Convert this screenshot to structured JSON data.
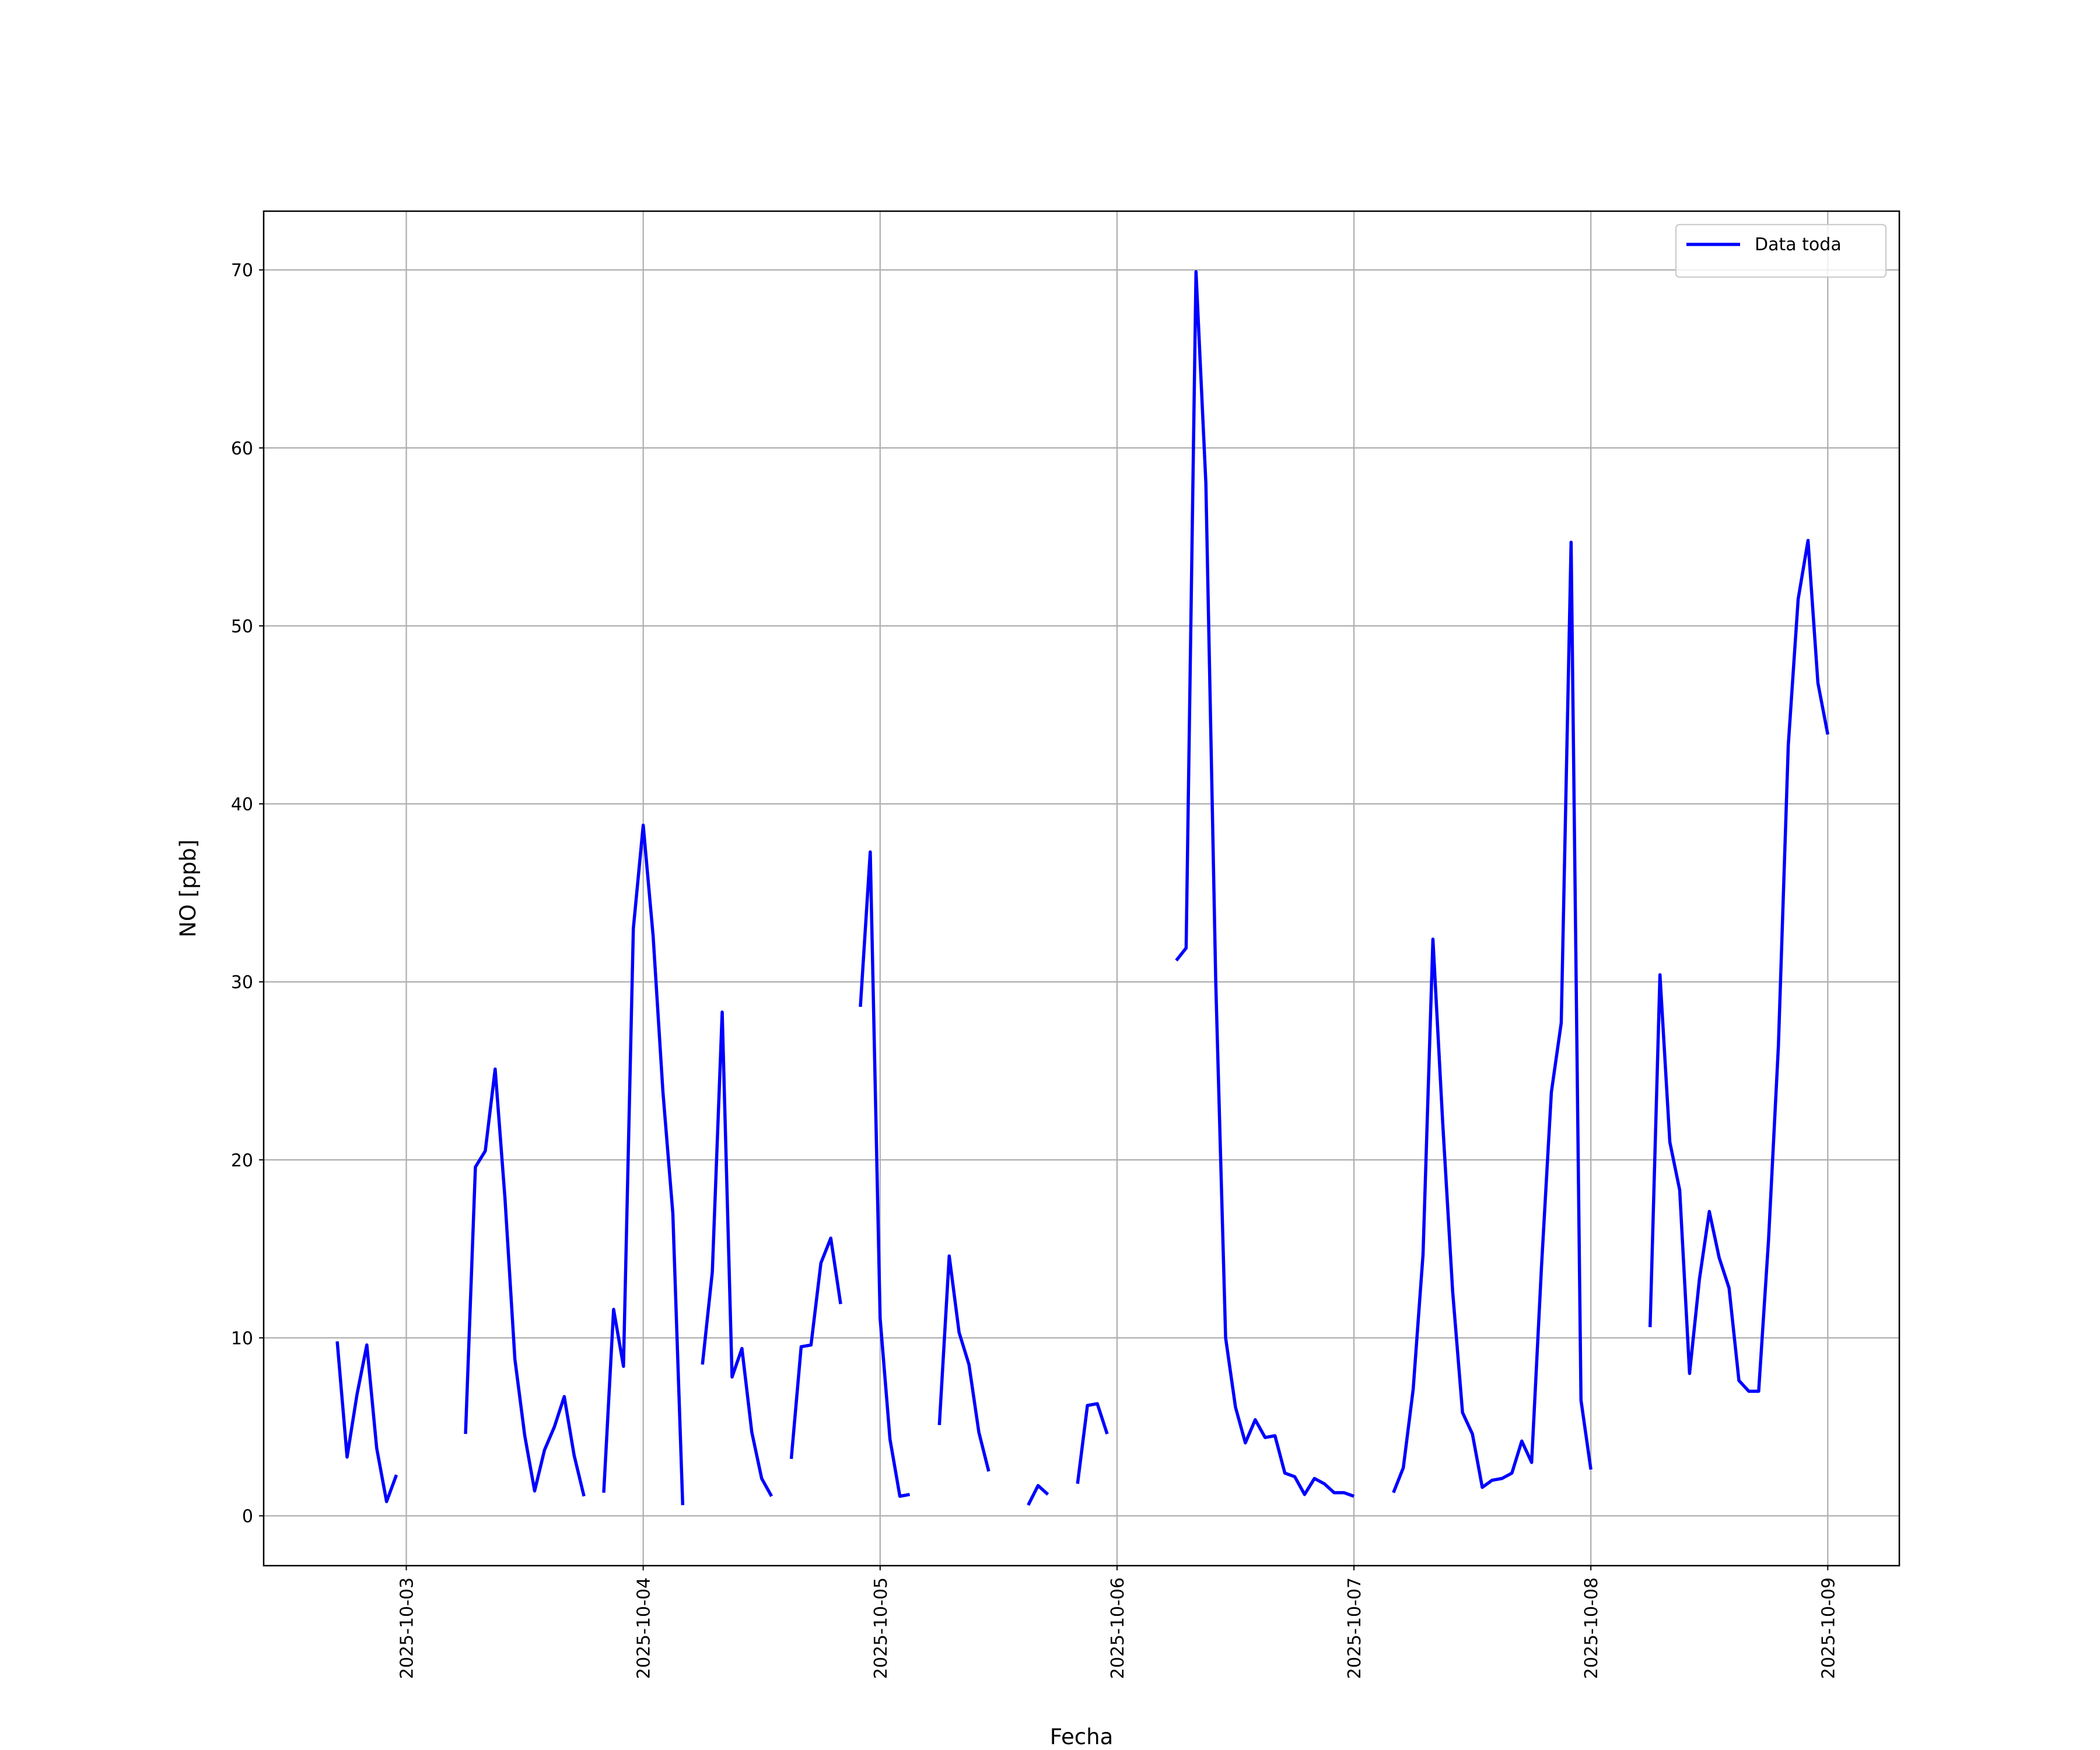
{
  "chart_data": {
    "type": "line",
    "xlabel": "Fecha",
    "ylabel": "NO [ppb]",
    "x": [
      "2025-10-02 17:00",
      "2025-10-02 18:00",
      "2025-10-02 19:00",
      "2025-10-02 20:00",
      "2025-10-02 21:00",
      "2025-10-02 22:00",
      "2025-10-02 23:00",
      "2025-10-03 00:00",
      "2025-10-03 01:00",
      "2025-10-03 02:00",
      "2025-10-03 03:00",
      "2025-10-03 04:00",
      "2025-10-03 05:00",
      "2025-10-03 06:00",
      "2025-10-03 07:00",
      "2025-10-03 08:00",
      "2025-10-03 09:00",
      "2025-10-03 10:00",
      "2025-10-03 11:00",
      "2025-10-03 12:00",
      "2025-10-03 13:00",
      "2025-10-03 14:00",
      "2025-10-03 15:00",
      "2025-10-03 16:00",
      "2025-10-03 17:00",
      "2025-10-03 18:00",
      "2025-10-03 19:00",
      "2025-10-03 20:00",
      "2025-10-03 21:00",
      "2025-10-03 22:00",
      "2025-10-03 23:00",
      "2025-10-04 00:00",
      "2025-10-04 01:00",
      "2025-10-04 02:00",
      "2025-10-04 03:00",
      "2025-10-04 04:00",
      "2025-10-04 05:00",
      "2025-10-04 06:00",
      "2025-10-04 07:00",
      "2025-10-04 08:00",
      "2025-10-04 09:00",
      "2025-10-04 10:00",
      "2025-10-04 11:00",
      "2025-10-04 12:00",
      "2025-10-04 13:00",
      "2025-10-04 14:00",
      "2025-10-04 15:00",
      "2025-10-04 16:00",
      "2025-10-04 17:00",
      "2025-10-04 18:00",
      "2025-10-04 19:00",
      "2025-10-04 20:00",
      "2025-10-04 21:00",
      "2025-10-04 22:00",
      "2025-10-04 23:00",
      "2025-10-05 00:00",
      "2025-10-05 01:00",
      "2025-10-05 02:00",
      "2025-10-05 03:00",
      "2025-10-05 04:00",
      "2025-10-05 05:00",
      "2025-10-05 06:00",
      "2025-10-05 07:00",
      "2025-10-05 08:00",
      "2025-10-05 09:00",
      "2025-10-05 10:00",
      "2025-10-05 11:00",
      "2025-10-05 12:00",
      "2025-10-05 13:00",
      "2025-10-05 14:00",
      "2025-10-05 15:00",
      "2025-10-05 16:00",
      "2025-10-05 17:00",
      "2025-10-05 18:00",
      "2025-10-05 19:00",
      "2025-10-05 20:00",
      "2025-10-05 21:00",
      "2025-10-05 22:00",
      "2025-10-05 23:00",
      "2025-10-06 00:00",
      "2025-10-06 01:00",
      "2025-10-06 02:00",
      "2025-10-06 03:00",
      "2025-10-06 04:00",
      "2025-10-06 05:00",
      "2025-10-06 06:00",
      "2025-10-06 07:00",
      "2025-10-06 08:00",
      "2025-10-06 09:00",
      "2025-10-06 10:00",
      "2025-10-06 11:00",
      "2025-10-06 12:00",
      "2025-10-06 13:00",
      "2025-10-06 14:00",
      "2025-10-06 15:00",
      "2025-10-06 16:00",
      "2025-10-06 17:00",
      "2025-10-06 18:00",
      "2025-10-06 19:00",
      "2025-10-06 20:00",
      "2025-10-06 21:00",
      "2025-10-06 22:00",
      "2025-10-06 23:00",
      "2025-10-07 00:00",
      "2025-10-07 01:00",
      "2025-10-07 02:00",
      "2025-10-07 03:00",
      "2025-10-07 04:00",
      "2025-10-07 05:00",
      "2025-10-07 06:00",
      "2025-10-07 07:00",
      "2025-10-07 08:00",
      "2025-10-07 09:00",
      "2025-10-07 10:00",
      "2025-10-07 11:00",
      "2025-10-07 12:00",
      "2025-10-07 13:00",
      "2025-10-07 14:00",
      "2025-10-07 15:00",
      "2025-10-07 16:00",
      "2025-10-07 17:00",
      "2025-10-07 18:00",
      "2025-10-07 19:00",
      "2025-10-07 20:00",
      "2025-10-07 21:00",
      "2025-10-07 22:00",
      "2025-10-07 23:00",
      "2025-10-08 00:00",
      "2025-10-08 01:00",
      "2025-10-08 02:00",
      "2025-10-08 03:00",
      "2025-10-08 04:00",
      "2025-10-08 05:00",
      "2025-10-08 06:00",
      "2025-10-08 07:00",
      "2025-10-08 08:00",
      "2025-10-08 09:00",
      "2025-10-08 10:00",
      "2025-10-08 11:00",
      "2025-10-08 12:00",
      "2025-10-08 13:00",
      "2025-10-08 14:00",
      "2025-10-08 15:00",
      "2025-10-08 16:00",
      "2025-10-08 17:00",
      "2025-10-08 18:00",
      "2025-10-08 19:00",
      "2025-10-08 20:00",
      "2025-10-08 21:00",
      "2025-10-08 22:00",
      "2025-10-08 23:00",
      "2025-10-09 00:00"
    ],
    "series": [
      {
        "name": "Data toda",
        "color": "#0000ff",
        "values": [
          9.8,
          3.3,
          6.8,
          9.6,
          3.8,
          0.8,
          2.3,
          null,
          null,
          null,
          null,
          null,
          null,
          4.6,
          19.6,
          20.5,
          25.1,
          17.8,
          8.8,
          4.5,
          1.4,
          3.7,
          5.0,
          6.7,
          3.4,
          1.1,
          null,
          1.3,
          11.6,
          8.4,
          33.0,
          38.8,
          32.6,
          23.8,
          17.0,
          0.6,
          null,
          8.5,
          13.7,
          28.3,
          7.8,
          9.4,
          4.7,
          2.1,
          1.1,
          null,
          3.2,
          9.5,
          9.6,
          14.2,
          15.6,
          11.9,
          null,
          28.6,
          37.3,
          11.1,
          4.3,
          1.1,
          1.2,
          null,
          null,
          5.1,
          14.6,
          10.3,
          8.5,
          4.7,
          2.5,
          null,
          null,
          null,
          0.6,
          1.7,
          1.2,
          null,
          null,
          1.8,
          6.2,
          6.3,
          4.6,
          null,
          null,
          null,
          null,
          null,
          null,
          31.2,
          31.9,
          69.9,
          58.0,
          30.0,
          10.0,
          6.1,
          4.1,
          5.4,
          4.4,
          4.5,
          2.4,
          2.2,
          1.2,
          2.1,
          1.8,
          1.3,
          1.3,
          1.1,
          null,
          null,
          null,
          1.3,
          2.7,
          7.1,
          14.7,
          32.4,
          22.0,
          12.6,
          5.8,
          4.6,
          1.6,
          2.0,
          2.1,
          2.4,
          4.2,
          3.0,
          14.0,
          23.8,
          27.7,
          54.7,
          6.5,
          2.6,
          null,
          null,
          null,
          null,
          null,
          10.6,
          30.4,
          21.0,
          18.3,
          8.0,
          13.3,
          17.1,
          14.5,
          12.8,
          7.6,
          7.0,
          7.0,
          15.5,
          26.4,
          43.3,
          51.5,
          54.8,
          46.8,
          43.9
        ]
      }
    ],
    "xlim": [
      "2025-10-02 09:33",
      "2025-10-09 07:15"
    ],
    "xticks": [
      "2025-10-03",
      "2025-10-04",
      "2025-10-05",
      "2025-10-06",
      "2025-10-07",
      "2025-10-08",
      "2025-10-09"
    ],
    "ylim": [
      -2.8,
      73.3
    ],
    "yticks": [
      0,
      10,
      20,
      30,
      40,
      50,
      60,
      70
    ],
    "grid": true,
    "legend": "upper right"
  }
}
